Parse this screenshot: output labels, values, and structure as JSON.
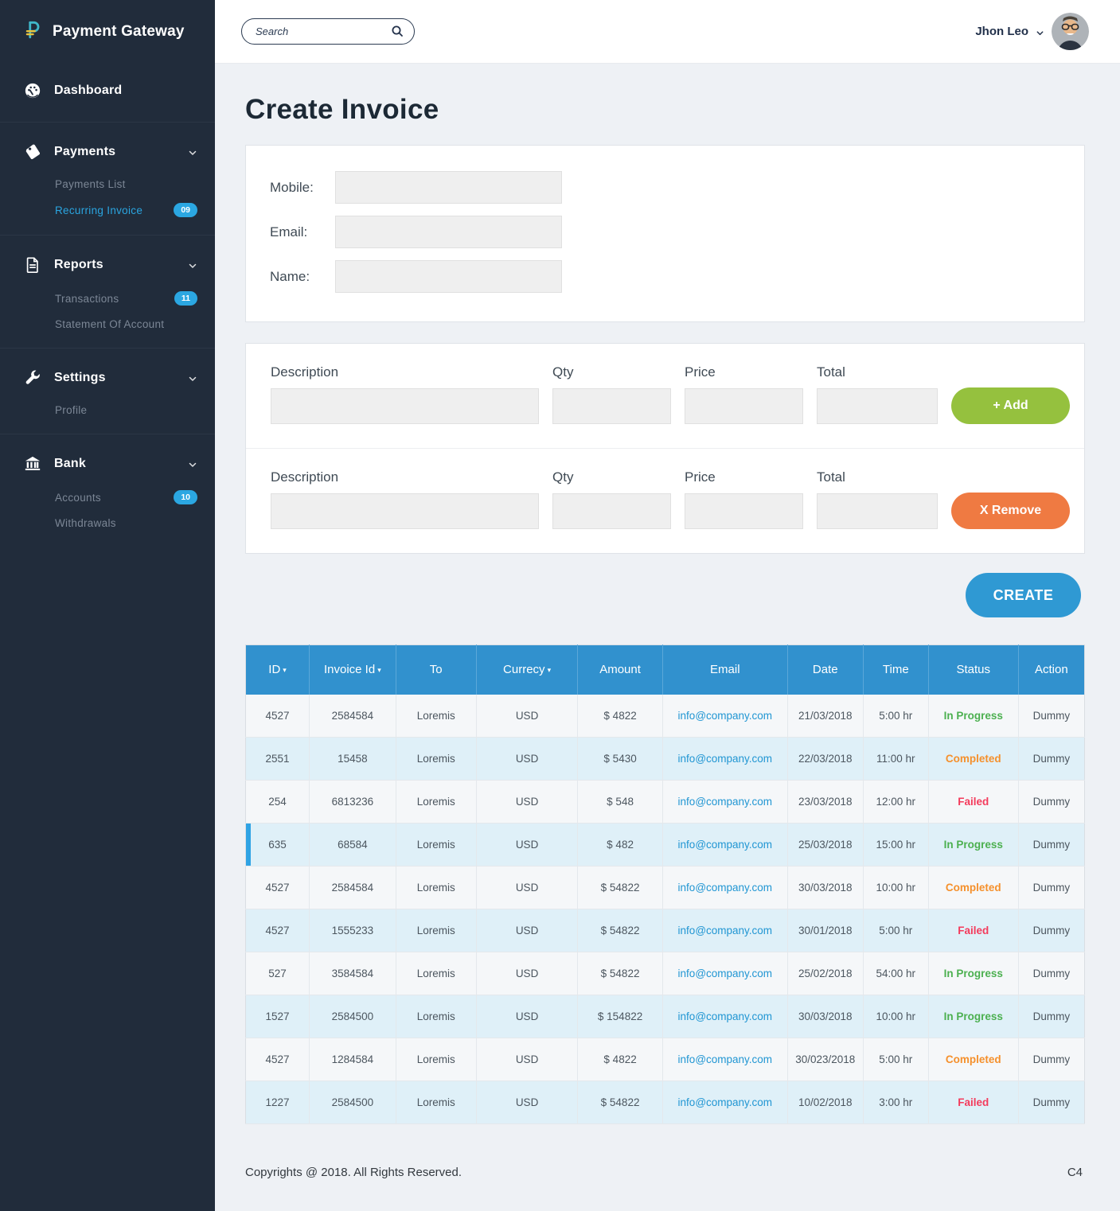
{
  "sidebar": {
    "logo_text": "Payment Gateway",
    "groups": [
      {
        "label": "Dashboard",
        "icon": "dashboard-icon",
        "expandable": false,
        "children": []
      },
      {
        "label": "Payments",
        "icon": "tag-icon",
        "expandable": true,
        "children": [
          {
            "label": "Payments List",
            "badge": null,
            "active": false
          },
          {
            "label": "Recurring Invoice",
            "badge": "09",
            "active": true
          }
        ]
      },
      {
        "label": "Reports",
        "icon": "document-icon",
        "expandable": true,
        "children": [
          {
            "label": "Transactions",
            "badge": "11",
            "active": false
          },
          {
            "label": "Statement Of Account",
            "badge": null,
            "active": false
          }
        ]
      },
      {
        "label": "Settings",
        "icon": "wrench-icon",
        "expandable": true,
        "children": [
          {
            "label": "Profile",
            "badge": null,
            "active": false
          }
        ]
      },
      {
        "label": "Bank",
        "icon": "bank-icon",
        "expandable": true,
        "children": [
          {
            "label": "Accounts",
            "badge": "10",
            "active": false
          },
          {
            "label": "Withdrawals",
            "badge": null,
            "active": false
          }
        ]
      }
    ]
  },
  "topbar": {
    "search_placeholder": "Search",
    "user_name": "Jhon Leo"
  },
  "page": {
    "title": "Create Invoice"
  },
  "customer_form": {
    "fields": [
      {
        "key": "mobile",
        "label": "Mobile:",
        "value": ""
      },
      {
        "key": "email",
        "label": "Email:",
        "value": ""
      },
      {
        "key": "name",
        "label": "Name:",
        "value": ""
      }
    ]
  },
  "items_form": {
    "column_labels": [
      "Description",
      "Qty",
      "Price",
      "Total"
    ],
    "rows": [
      {
        "action": "add",
        "action_label": "+ Add"
      },
      {
        "action": "remove",
        "action_label": "X Remove"
      }
    ]
  },
  "create": {
    "label": "CREATE"
  },
  "table": {
    "headers": [
      {
        "label": "ID",
        "sortable": true
      },
      {
        "label": "Invoice Id",
        "sortable": true
      },
      {
        "label": "To",
        "sortable": false
      },
      {
        "label": "Currecy",
        "sortable": true
      },
      {
        "label": "Amount",
        "sortable": false
      },
      {
        "label": "Email",
        "sortable": false
      },
      {
        "label": "Date",
        "sortable": false
      },
      {
        "label": "Time",
        "sortable": false
      },
      {
        "label": "Status",
        "sortable": false
      },
      {
        "label": "Action",
        "sortable": false
      }
    ],
    "rows": [
      {
        "id": "4527",
        "invoice_id": "2584584",
        "to": "Loremis",
        "currency": "USD",
        "amount": "$ 4822",
        "email": "info@company.com",
        "date": "21/03/2018",
        "time": "5:00 hr",
        "status": "In Progress",
        "action": "Dummy",
        "accent": false
      },
      {
        "id": "2551",
        "invoice_id": "15458",
        "to": "Loremis",
        "currency": "USD",
        "amount": "$ 5430",
        "email": "info@company.com",
        "date": "22/03/2018",
        "time": "11:00 hr",
        "status": "Completed",
        "action": "Dummy",
        "accent": false
      },
      {
        "id": "254",
        "invoice_id": "6813236",
        "to": "Loremis",
        "currency": "USD",
        "amount": "$ 548",
        "email": "info@company.com",
        "date": "23/03/2018",
        "time": "12:00 hr",
        "status": "Failed",
        "action": "Dummy",
        "accent": false
      },
      {
        "id": "635",
        "invoice_id": "68584",
        "to": "Loremis",
        "currency": "USD",
        "amount": "$ 482",
        "email": "info@company.com",
        "date": "25/03/2018",
        "time": "15:00 hr",
        "status": "In Progress",
        "action": "Dummy",
        "accent": true
      },
      {
        "id": "4527",
        "invoice_id": "2584584",
        "to": "Loremis",
        "currency": "USD",
        "amount": "$ 54822",
        "email": "info@company.com",
        "date": "30/03/2018",
        "time": "10:00 hr",
        "status": "Completed",
        "action": "Dummy",
        "accent": false
      },
      {
        "id": "4527",
        "invoice_id": "1555233",
        "to": "Loremis",
        "currency": "USD",
        "amount": "$ 54822",
        "email": "info@company.com",
        "date": "30/01/2018",
        "time": "5:00 hr",
        "status": "Failed",
        "action": "Dummy",
        "accent": false
      },
      {
        "id": "527",
        "invoice_id": "3584584",
        "to": "Loremis",
        "currency": "USD",
        "amount": "$ 54822",
        "email": "info@company.com",
        "date": "25/02/2018",
        "time": "54:00 hr",
        "status": "In Progress",
        "action": "Dummy",
        "accent": false
      },
      {
        "id": "1527",
        "invoice_id": "2584500",
        "to": "Loremis",
        "currency": "USD",
        "amount": "$ 154822",
        "email": "info@company.com",
        "date": "30/03/2018",
        "time": "10:00 hr",
        "status": "In Progress",
        "action": "Dummy",
        "accent": false
      },
      {
        "id": "4527",
        "invoice_id": "1284584",
        "to": "Loremis",
        "currency": "USD",
        "amount": "$ 4822",
        "email": "info@company.com",
        "date": "30/023/2018",
        "time": "5:00 hr",
        "status": "Completed",
        "action": "Dummy",
        "accent": false
      },
      {
        "id": "1227",
        "invoice_id": "2584500",
        "to": "Loremis",
        "currency": "USD",
        "amount": "$ 54822",
        "email": "info@company.com",
        "date": "10/02/2018",
        "time": "3:00 hr",
        "status": "Failed",
        "action": "Dummy",
        "accent": false
      }
    ]
  },
  "footer": {
    "copyright": "Copyrights @ 2018. All Rights Reserved.",
    "page_code": "C4"
  },
  "colors": {
    "sidebar_bg": "#212c3b",
    "header_blue": "#3191ce",
    "badge_blue": "#2ba7e2",
    "active_item": "#2aa5e0",
    "add_green": "#95c13e",
    "remove_orange": "#ef7a42",
    "create_blue": "#2f99d3",
    "link_blue": "#2196d3",
    "status_in_progress": "#4cb050",
    "status_completed": "#f5902c",
    "status_failed": "#f43b5c",
    "row_blue": "#dff0f8",
    "row_accent": "#2fa3e4"
  }
}
